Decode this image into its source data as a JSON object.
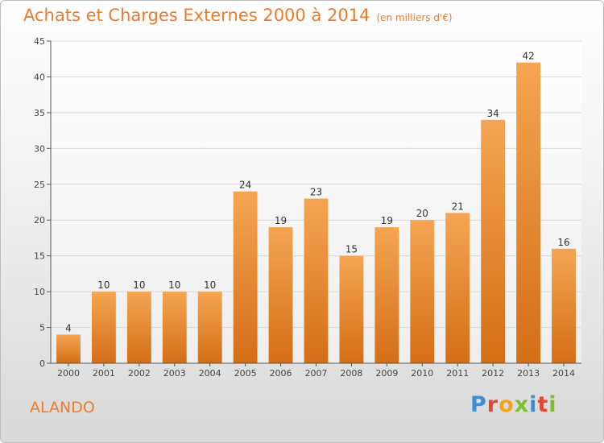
{
  "header": {
    "title": "Achats et Charges Externes 2000 à 2014",
    "subtitle": "(en milliers d'€)"
  },
  "footer": {
    "commune": "ALANDO",
    "logo_text": "Proxiti",
    "logo_colors": [
      "#3a8fd6",
      "#e8452c",
      "#f5a31a",
      "#7cbf2f",
      "#3a8fd6",
      "#e8452c",
      "#7cbf2f"
    ]
  },
  "colors": {
    "bar_top": "#f5a552",
    "bar_bottom": "#d46e16",
    "accent": "#f07a2a"
  },
  "chart_data": {
    "type": "bar",
    "title": "Achats et Charges Externes 2000 à 2014",
    "subtitle": "(en milliers d'€)",
    "categories": [
      "2000",
      "2001",
      "2002",
      "2003",
      "2004",
      "2005",
      "2006",
      "2007",
      "2008",
      "2009",
      "2010",
      "2011",
      "2012",
      "2013",
      "2014"
    ],
    "values": [
      4,
      10,
      10,
      10,
      10,
      24,
      19,
      23,
      15,
      19,
      20,
      21,
      34,
      42,
      16
    ],
    "value_labels": [
      "4",
      "10",
      "10",
      "10",
      "10",
      "24",
      "19",
      "23",
      "15",
      "19",
      "20",
      "21",
      "34",
      "42",
      "16"
    ],
    "ylim": [
      0,
      45
    ],
    "yticks": [
      0,
      5,
      10,
      15,
      20,
      25,
      30,
      35,
      40,
      45
    ],
    "ytick_labels": [
      "0",
      "5",
      "10",
      "15",
      "20",
      "25",
      "30",
      "35",
      "40",
      "45"
    ],
    "xlabel": "",
    "ylabel": "",
    "grid": true
  }
}
